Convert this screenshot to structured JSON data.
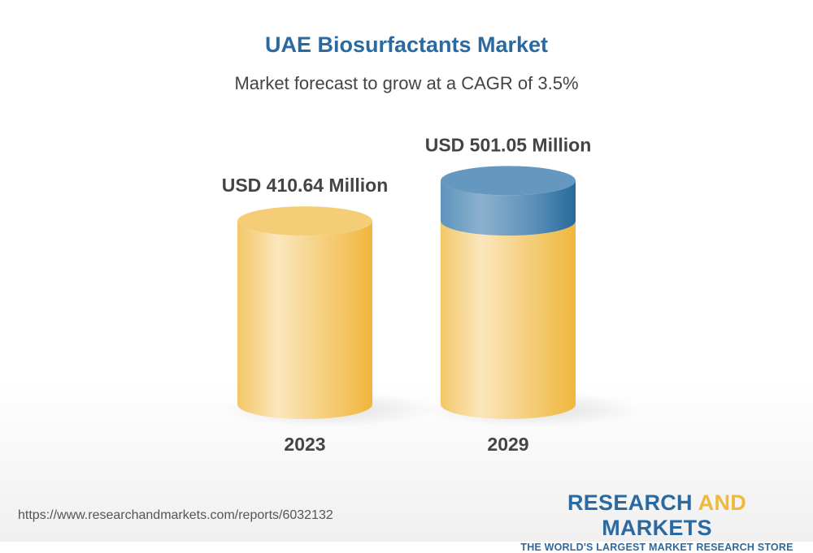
{
  "title": "UAE Biosurfactants Market",
  "subtitle": "Market forecast to grow at a CAGR of 3.5%",
  "chart_data": {
    "type": "bar",
    "style": "3d-cylinder",
    "title": "UAE Biosurfactants Market",
    "subtitle": "Market forecast to grow at a CAGR of 3.5%",
    "categories": [
      "2023",
      "2029"
    ],
    "values": [
      410.64,
      501.05
    ],
    "data_labels": [
      "USD 410.64 Million",
      "USD 501.05 Million"
    ],
    "unit": "USD Million",
    "cagr_percent": 3.5,
    "colors": {
      "base": "#f2c14e",
      "growth": "#2f6d9e"
    }
  },
  "footer": {
    "url": "https://www.researchandmarkets.com/reports/6032132",
    "logo_part1": "RESEARCH ",
    "logo_part2": "AND",
    "logo_part3": " MARKETS",
    "logo_tagline": "THE WORLD'S LARGEST MARKET RESEARCH STORE"
  }
}
